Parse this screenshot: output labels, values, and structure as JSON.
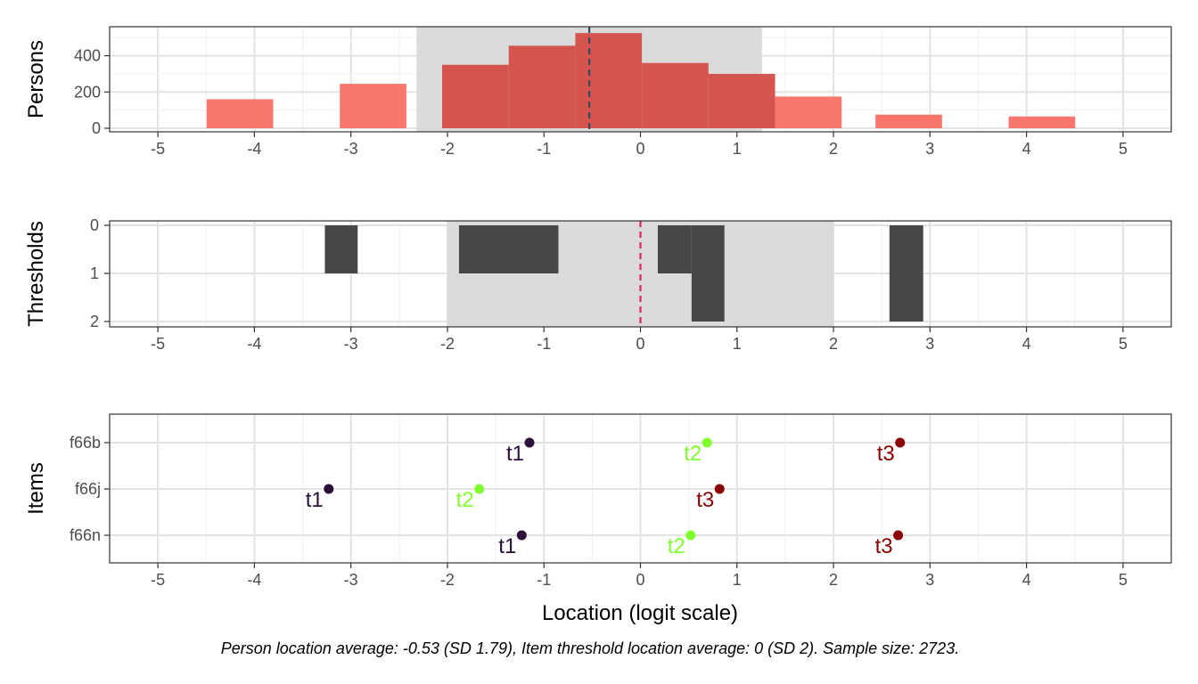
{
  "chart_data": [
    {
      "type": "bar",
      "ylabel": "Persons",
      "xlim": [
        -5.5,
        5.5
      ],
      "x_ticks": [
        "-5",
        "-4",
        "-3",
        "-2",
        "-1",
        "0",
        "1",
        "2",
        "3",
        "4",
        "5"
      ],
      "y_ticks": [
        "0",
        "200",
        "400"
      ],
      "ylim": [
        0,
        560
      ],
      "shaded_range": [
        -2.32,
        1.26
      ],
      "mean_line": -0.53,
      "bars": [
        {
          "x": -4.15,
          "value": 160,
          "in_range": false
        },
        {
          "x": -2.77,
          "value": 245,
          "in_range": false
        },
        {
          "x": -1.71,
          "value": 350,
          "in_range": true
        },
        {
          "x": -1.02,
          "value": 455,
          "in_range": true
        },
        {
          "x": -0.33,
          "value": 525,
          "in_range": true
        },
        {
          "x": 0.36,
          "value": 360,
          "in_range": true
        },
        {
          "x": 1.05,
          "value": 300,
          "in_range": true
        },
        {
          "x": 1.74,
          "value": 175,
          "in_range": false
        },
        {
          "x": 2.78,
          "value": 75,
          "in_range": false
        },
        {
          "x": 4.16,
          "value": 65,
          "in_range": false
        }
      ],
      "colors": {
        "bar": "#F8766D",
        "bar_in_range": "#D4554E",
        "shade": "#D9D9D9",
        "mean_line": "#34495E"
      }
    },
    {
      "type": "bar",
      "ylabel": "Thresholds",
      "xlim": [
        -5.5,
        5.5
      ],
      "x_ticks": [
        "-5",
        "-4",
        "-3",
        "-2",
        "-1",
        "0",
        "1",
        "2",
        "3",
        "4",
        "5"
      ],
      "y_ticks": [
        "0",
        "1",
        "2"
      ],
      "ylim_reversed": [
        0,
        2
      ],
      "shaded_range": [
        -2.0,
        2.0
      ],
      "mean_line": 0,
      "bars": [
        {
          "x0": -3.27,
          "x1": -2.93,
          "value": 1
        },
        {
          "x0": -1.88,
          "x1": -0.85,
          "value": 1
        },
        {
          "x0": 0.18,
          "x1": 0.53,
          "value": 1
        },
        {
          "x0": 0.53,
          "x1": 0.87,
          "value": 2
        },
        {
          "x0": 2.58,
          "x1": 2.93,
          "value": 2
        }
      ],
      "colors": {
        "bar": "#474747",
        "shade": "#D9D9D9",
        "mean_line": "#E0245E"
      }
    },
    {
      "type": "scatter",
      "ylabel": "Items",
      "xlabel": "Location (logit scale)",
      "xlim": [
        -5.5,
        5.5
      ],
      "x_ticks": [
        "-5",
        "-4",
        "-3",
        "-2",
        "-1",
        "0",
        "1",
        "2",
        "3",
        "4",
        "5"
      ],
      "categories": [
        "f66b",
        "f66j",
        "f66n"
      ],
      "series": [
        {
          "name": "t1",
          "color": "#2B0F3A",
          "points": [
            {
              "item": "f66b",
              "x": -1.15
            },
            {
              "item": "f66j",
              "x": -3.23
            },
            {
              "item": "f66n",
              "x": -1.23
            }
          ]
        },
        {
          "name": "t2",
          "color": "#7FFF2E",
          "points": [
            {
              "item": "f66b",
              "x": 0.69
            },
            {
              "item": "f66j",
              "x": -1.67
            },
            {
              "item": "f66n",
              "x": 0.52
            }
          ]
        },
        {
          "name": "t3",
          "color": "#8B0000",
          "points": [
            {
              "item": "f66b",
              "x": 2.69
            },
            {
              "item": "f66j",
              "x": 0.82
            },
            {
              "item": "f66n",
              "x": 2.67
            }
          ]
        }
      ]
    }
  ],
  "caption": "Person location average: -0.53 (SD 1.79), Item threshold location average: 0 (SD 2). Sample size: 2723."
}
